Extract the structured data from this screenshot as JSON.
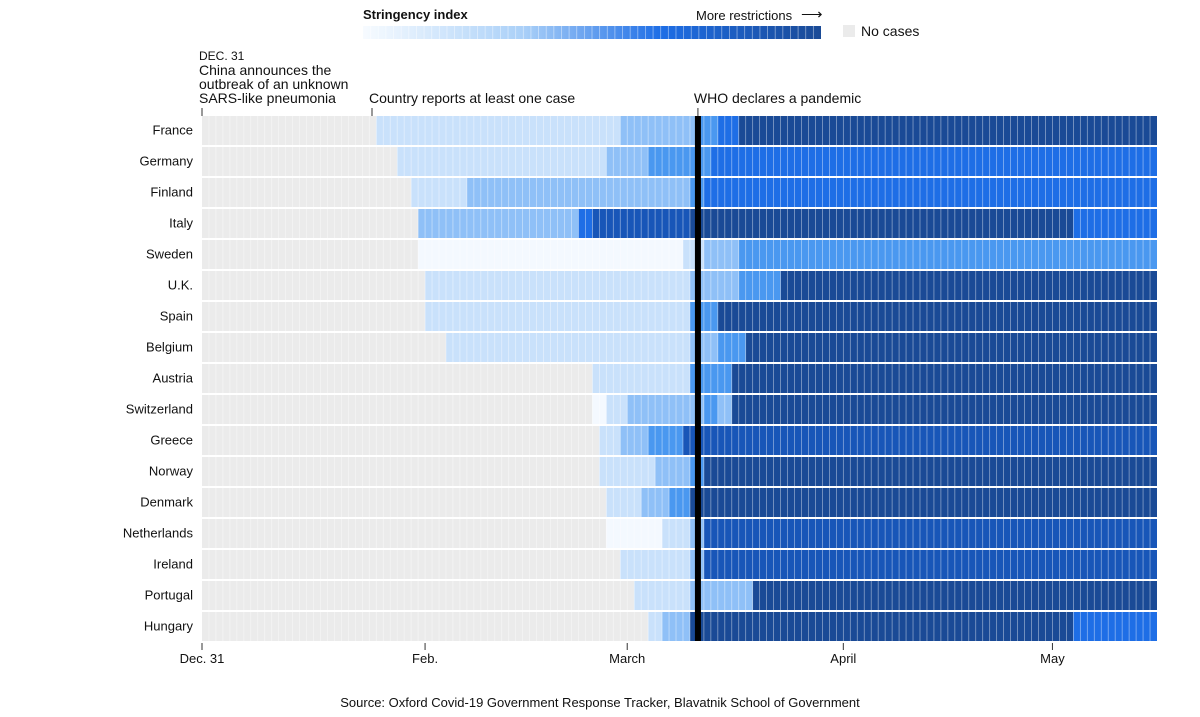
{
  "legend": {
    "title": "Stringency index",
    "more_label": "More restrictions",
    "arrow": "⟶",
    "no_cases_label": "No cases",
    "scale_colors": [
      "#f4f9ff",
      "#c9e1fb",
      "#8fc0f7",
      "#4a98f0",
      "#1e6ee6",
      "#1856b8",
      "#1a4a96"
    ],
    "no_cases_color": "#ebebeb"
  },
  "annotations": {
    "dec31_date": "DEC. 31",
    "dec31_text": [
      "China announces the",
      "outbreak of an unknown",
      "SARS-like pneumonia"
    ],
    "first_case": "Country reports at least one case",
    "pandemic": "WHO declares a pandemic"
  },
  "source": "Source: Oxford Covid-19 Government Response Tracker, Blavatnik School of Government",
  "chart_data": {
    "type": "heatmap",
    "x_start": "2019-12-31",
    "x_end": "2020-05-15",
    "x_tick_labels": [
      {
        "date": "2019-12-31",
        "label": "Dec. 31"
      },
      {
        "date": "2020-02-01",
        "label": "Feb."
      },
      {
        "date": "2020-03-01",
        "label": "March"
      },
      {
        "date": "2020-04-01",
        "label": "April"
      },
      {
        "date": "2020-05-01",
        "label": "May"
      }
    ],
    "pandemic_date": "2020-03-11",
    "legend": "top",
    "countries": [
      {
        "name": "France",
        "first_case": "2020-01-25",
        "segments": [
          [
            "2020-01-25",
            1
          ],
          [
            "2020-02-29",
            2
          ],
          [
            "2020-03-11",
            3
          ],
          [
            "2020-03-14",
            4
          ],
          [
            "2020-03-17",
            6
          ]
        ]
      },
      {
        "name": "Germany",
        "first_case": "2020-01-28",
        "segments": [
          [
            "2020-01-28",
            1
          ],
          [
            "2020-02-27",
            2
          ],
          [
            "2020-03-04",
            3
          ],
          [
            "2020-03-13",
            4
          ]
        ]
      },
      {
        "name": "Finland",
        "first_case": "2020-01-30",
        "segments": [
          [
            "2020-01-30",
            1
          ],
          [
            "2020-02-07",
            2
          ],
          [
            "2020-03-10",
            3
          ],
          [
            "2020-03-12",
            4
          ]
        ]
      },
      {
        "name": "Italy",
        "first_case": "2020-01-31",
        "segments": [
          [
            "2020-01-31",
            2
          ],
          [
            "2020-02-23",
            4
          ],
          [
            "2020-02-25",
            5
          ],
          [
            "2020-03-10",
            6
          ],
          [
            "2020-05-04",
            4
          ]
        ]
      },
      {
        "name": "Sweden",
        "first_case": "2020-01-31",
        "segments": [
          [
            "2020-01-31",
            0
          ],
          [
            "2020-03-09",
            1
          ],
          [
            "2020-03-12",
            2
          ],
          [
            "2020-03-17",
            3
          ]
        ]
      },
      {
        "name": "U.K.",
        "first_case": "2020-02-01",
        "segments": [
          [
            "2020-02-01",
            1
          ],
          [
            "2020-03-10",
            2
          ],
          [
            "2020-03-17",
            3
          ],
          [
            "2020-03-23",
            6
          ]
        ]
      },
      {
        "name": "Spain",
        "first_case": "2020-02-01",
        "segments": [
          [
            "2020-02-01",
            1
          ],
          [
            "2020-03-10",
            3
          ],
          [
            "2020-03-14",
            6
          ]
        ]
      },
      {
        "name": "Belgium",
        "first_case": "2020-02-04",
        "segments": [
          [
            "2020-02-04",
            1
          ],
          [
            "2020-03-10",
            2
          ],
          [
            "2020-03-14",
            3
          ],
          [
            "2020-03-18",
            6
          ]
        ]
      },
      {
        "name": "Austria",
        "first_case": "2020-02-25",
        "segments": [
          [
            "2020-02-25",
            1
          ],
          [
            "2020-03-10",
            3
          ],
          [
            "2020-03-16",
            6
          ]
        ]
      },
      {
        "name": "Switzerland",
        "first_case": "2020-02-25",
        "segments": [
          [
            "2020-02-25",
            0
          ],
          [
            "2020-02-27",
            1
          ],
          [
            "2020-03-01",
            2
          ],
          [
            "2020-03-12",
            3
          ],
          [
            "2020-03-14",
            2
          ],
          [
            "2020-03-16",
            6
          ]
        ]
      },
      {
        "name": "Greece",
        "first_case": "2020-02-26",
        "segments": [
          [
            "2020-02-26",
            1
          ],
          [
            "2020-02-29",
            2
          ],
          [
            "2020-03-04",
            3
          ],
          [
            "2020-03-09",
            5
          ]
        ]
      },
      {
        "name": "Norway",
        "first_case": "2020-02-26",
        "segments": [
          [
            "2020-02-26",
            1
          ],
          [
            "2020-03-05",
            2
          ],
          [
            "2020-03-10",
            3
          ],
          [
            "2020-03-12",
            6
          ]
        ]
      },
      {
        "name": "Denmark",
        "first_case": "2020-02-27",
        "segments": [
          [
            "2020-02-27",
            1
          ],
          [
            "2020-03-03",
            2
          ],
          [
            "2020-03-07",
            3
          ],
          [
            "2020-03-10",
            6
          ]
        ]
      },
      {
        "name": "Netherlands",
        "first_case": "2020-02-27",
        "segments": [
          [
            "2020-02-27",
            0
          ],
          [
            "2020-03-06",
            1
          ],
          [
            "2020-03-10",
            2
          ],
          [
            "2020-03-12",
            5
          ]
        ]
      },
      {
        "name": "Ireland",
        "first_case": "2020-02-29",
        "segments": [
          [
            "2020-02-29",
            1
          ],
          [
            "2020-03-10",
            2
          ],
          [
            "2020-03-12",
            5
          ]
        ]
      },
      {
        "name": "Portugal",
        "first_case": "2020-03-02",
        "segments": [
          [
            "2020-03-02",
            1
          ],
          [
            "2020-03-10",
            2
          ],
          [
            "2020-03-19",
            6
          ]
        ]
      },
      {
        "name": "Hungary",
        "first_case": "2020-03-04",
        "segments": [
          [
            "2020-03-04",
            1
          ],
          [
            "2020-03-06",
            2
          ],
          [
            "2020-03-10",
            6
          ],
          [
            "2020-05-04",
            4
          ]
        ]
      }
    ]
  }
}
